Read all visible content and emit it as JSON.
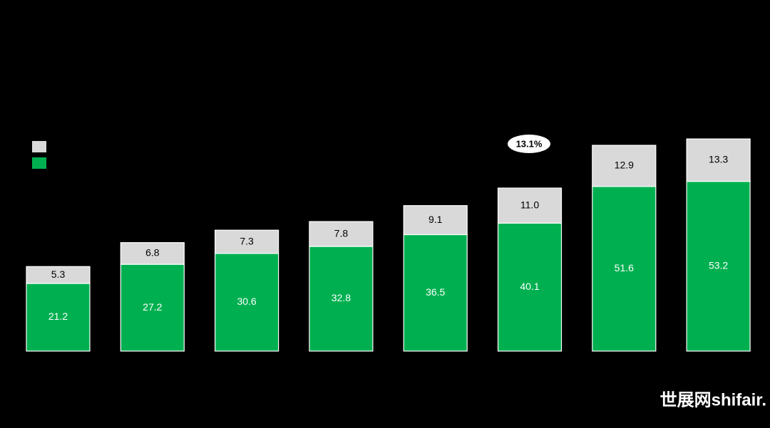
{
  "chart_data": {
    "type": "stacked_bar",
    "categories": [
      null,
      null,
      null,
      null,
      null,
      null,
      null,
      null
    ],
    "series": [
      {
        "color": "#00b050",
        "values": [
          21.2,
          27.2,
          30.6,
          32.8,
          36.5,
          40.1,
          51.6,
          53.2
        ]
      },
      {
        "color": "#d9d9d9",
        "values": [
          5.3,
          6.8,
          7.3,
          7.8,
          9.1,
          11,
          12.9,
          13.3
        ],
        "value_labels": [
          "5.3",
          "6.8",
          "7.3",
          "7.8",
          "9.1",
          "11.0",
          "12.9",
          "13.3"
        ]
      }
    ],
    "annotation": "13.1%",
    "watermark": "世展网shifair."
  }
}
